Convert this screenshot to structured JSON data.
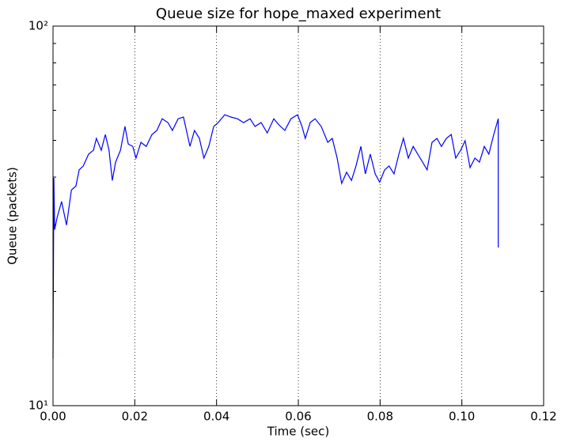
{
  "chart_data": {
    "type": "line",
    "title": "Queue size for hope_maxed experiment",
    "x_label": "Time (sec)",
    "y_label": "Queue (packets)",
    "y_scale": "log",
    "grid": "x",
    "color": "#0000ff",
    "xlim": [
      0,
      0.12
    ],
    "ylim": [
      10,
      100
    ],
    "xticks": [
      {
        "value": 0,
        "label": "0.00"
      },
      0.02,
      0.04,
      0.06,
      0.08,
      {
        "value": 0.1,
        "label": "0.10"
      },
      0.12
    ],
    "yticks": [
      {
        "value": 10,
        "label": "10¹"
      },
      {
        "value": 100,
        "label": "10²"
      }
    ],
    "yminor_ticks": [
      20,
      30,
      40,
      50,
      60,
      70,
      80,
      90
    ],
    "x": [
      0.0,
      0.0002,
      0.0004,
      0.001,
      0.0021,
      0.0033,
      0.0045,
      0.0056,
      0.0064,
      0.0074,
      0.0087,
      0.0099,
      0.0106,
      0.0118,
      0.0128,
      0.0137,
      0.0145,
      0.0153,
      0.0165,
      0.0176,
      0.0184,
      0.0195,
      0.0203,
      0.0215,
      0.0228,
      0.0242,
      0.0254,
      0.0267,
      0.0281,
      0.0292,
      0.0306,
      0.0319,
      0.0335,
      0.0346,
      0.0358,
      0.0369,
      0.0381,
      0.0393,
      0.0404,
      0.042,
      0.0435,
      0.0451,
      0.0466,
      0.0482,
      0.0494,
      0.0509,
      0.0524,
      0.054,
      0.0552,
      0.0567,
      0.0582,
      0.0598,
      0.0609,
      0.0617,
      0.0629,
      0.0641,
      0.0656,
      0.0672,
      0.0683,
      0.0695,
      0.0706,
      0.0718,
      0.073,
      0.0741,
      0.0753,
      0.0764,
      0.0776,
      0.0788,
      0.0799,
      0.0811,
      0.0822,
      0.0834,
      0.0846,
      0.0857,
      0.0869,
      0.0881,
      0.0892,
      0.0904,
      0.0915,
      0.0927,
      0.0939,
      0.095,
      0.0962,
      0.0974,
      0.0985,
      0.0997,
      0.1008,
      0.102,
      0.1032,
      0.1043,
      0.1055,
      0.1066,
      0.1078,
      0.1089,
      0.1089
    ],
    "values": [
      13.3,
      39.8,
      29.1,
      31.3,
      34.5,
      29.9,
      37.0,
      37.9,
      41.8,
      42.8,
      46.0,
      47.1,
      50.6,
      47.1,
      51.8,
      47.1,
      39.2,
      43.8,
      47.1,
      54.4,
      48.9,
      48.2,
      44.9,
      49.4,
      48.2,
      51.8,
      53.1,
      57.0,
      55.7,
      53.1,
      57.0,
      57.6,
      48.2,
      53.1,
      50.6,
      44.9,
      48.2,
      54.4,
      55.7,
      58.4,
      57.6,
      57.0,
      55.7,
      57.0,
      54.4,
      55.7,
      52.3,
      57.0,
      55.0,
      53.1,
      57.0,
      58.4,
      54.4,
      50.6,
      55.7,
      57.0,
      54.4,
      49.4,
      50.6,
      44.9,
      38.5,
      41.2,
      39.2,
      42.8,
      48.2,
      40.8,
      46.0,
      40.8,
      38.8,
      41.8,
      42.8,
      40.8,
      46.0,
      50.6,
      44.9,
      48.2,
      46.0,
      43.8,
      41.8,
      49.4,
      50.6,
      48.2,
      50.6,
      51.8,
      44.9,
      47.1,
      49.9,
      42.4,
      44.9,
      43.8,
      48.2,
      46.0,
      51.8,
      57.0,
      26.1
    ]
  }
}
